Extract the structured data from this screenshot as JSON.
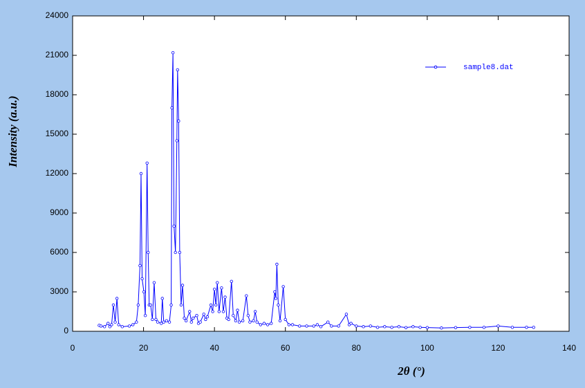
{
  "chart_data": {
    "type": "line",
    "x_label": "2θ (°)",
    "y_label": "Intensity (a.u.)",
    "x": [
      7.5,
      8,
      9,
      10,
      10.5,
      11,
      11.5,
      12,
      12.5,
      13,
      14,
      16,
      17,
      18,
      18.5,
      19,
      19.3,
      19.6,
      20.1,
      20.5,
      21,
      21.3,
      21.6,
      22,
      22.5,
      23,
      23.5,
      24,
      25,
      25.3,
      25.7,
      26.5,
      27.3,
      27.8,
      28,
      28.3,
      28.6,
      29,
      29.4,
      29.6,
      29.9,
      30.2,
      30.6,
      31,
      31.5,
      32,
      33,
      33.5,
      34,
      35,
      35.5,
      36,
      37,
      37.5,
      38,
      39,
      39.5,
      40,
      40.4,
      40.8,
      41.3,
      42,
      42.5,
      43,
      43.5,
      44,
      44.8,
      45.3,
      46,
      46.5,
      47,
      48,
      49,
      49.5,
      50,
      51,
      51.5,
      52,
      53,
      54,
      55,
      56,
      57,
      57.3,
      57.6,
      58,
      58.5,
      59.4,
      60,
      61,
      62,
      64,
      66,
      68,
      69,
      70,
      72,
      73,
      75,
      77.2,
      78,
      78.5,
      80,
      82,
      84,
      86,
      88,
      90,
      92,
      94,
      96,
      98,
      100,
      104,
      108,
      112,
      116,
      120,
      124,
      128,
      130
    ],
    "series": [
      {
        "name": "sample8.dat",
        "color": "#0000ff",
        "values": [
          450,
          400,
          350,
          600,
          350,
          500,
          2000,
          700,
          2500,
          500,
          350,
          400,
          500,
          700,
          2000,
          5000,
          12000,
          4000,
          3000,
          1200,
          12800,
          6000,
          2000,
          2000,
          900,
          3700,
          900,
          700,
          600,
          2500,
          700,
          800,
          700,
          2000,
          17000,
          21200,
          8000,
          6000,
          14500,
          19900,
          16000,
          6000,
          2000,
          3500,
          1000,
          800,
          1500,
          700,
          1000,
          1200,
          600,
          700,
          1300,
          900,
          1100,
          2000,
          1500,
          3200,
          2000,
          3700,
          1500,
          3300,
          1500,
          2600,
          1000,
          900,
          3800,
          1200,
          800,
          1600,
          700,
          800,
          2700,
          1200,
          700,
          800,
          1500,
          700,
          500,
          600,
          500,
          600,
          3000,
          2500,
          5100,
          2000,
          800,
          3400,
          900,
          500,
          500,
          400,
          400,
          400,
          500,
          350,
          700,
          400,
          400,
          1300,
          500,
          600,
          400,
          350,
          400,
          300,
          350,
          300,
          350,
          280,
          350,
          300,
          280,
          250,
          280,
          300,
          300,
          400,
          300,
          300,
          300
        ]
      }
    ],
    "xlim": [
      0,
      140
    ],
    "xticks": [
      0,
      20,
      40,
      60,
      80,
      100,
      120,
      140
    ],
    "ylim": [
      0,
      24000
    ],
    "yticks": [
      0,
      3000,
      6000,
      9000,
      12000,
      15000,
      18000,
      21000,
      24000
    ]
  }
}
